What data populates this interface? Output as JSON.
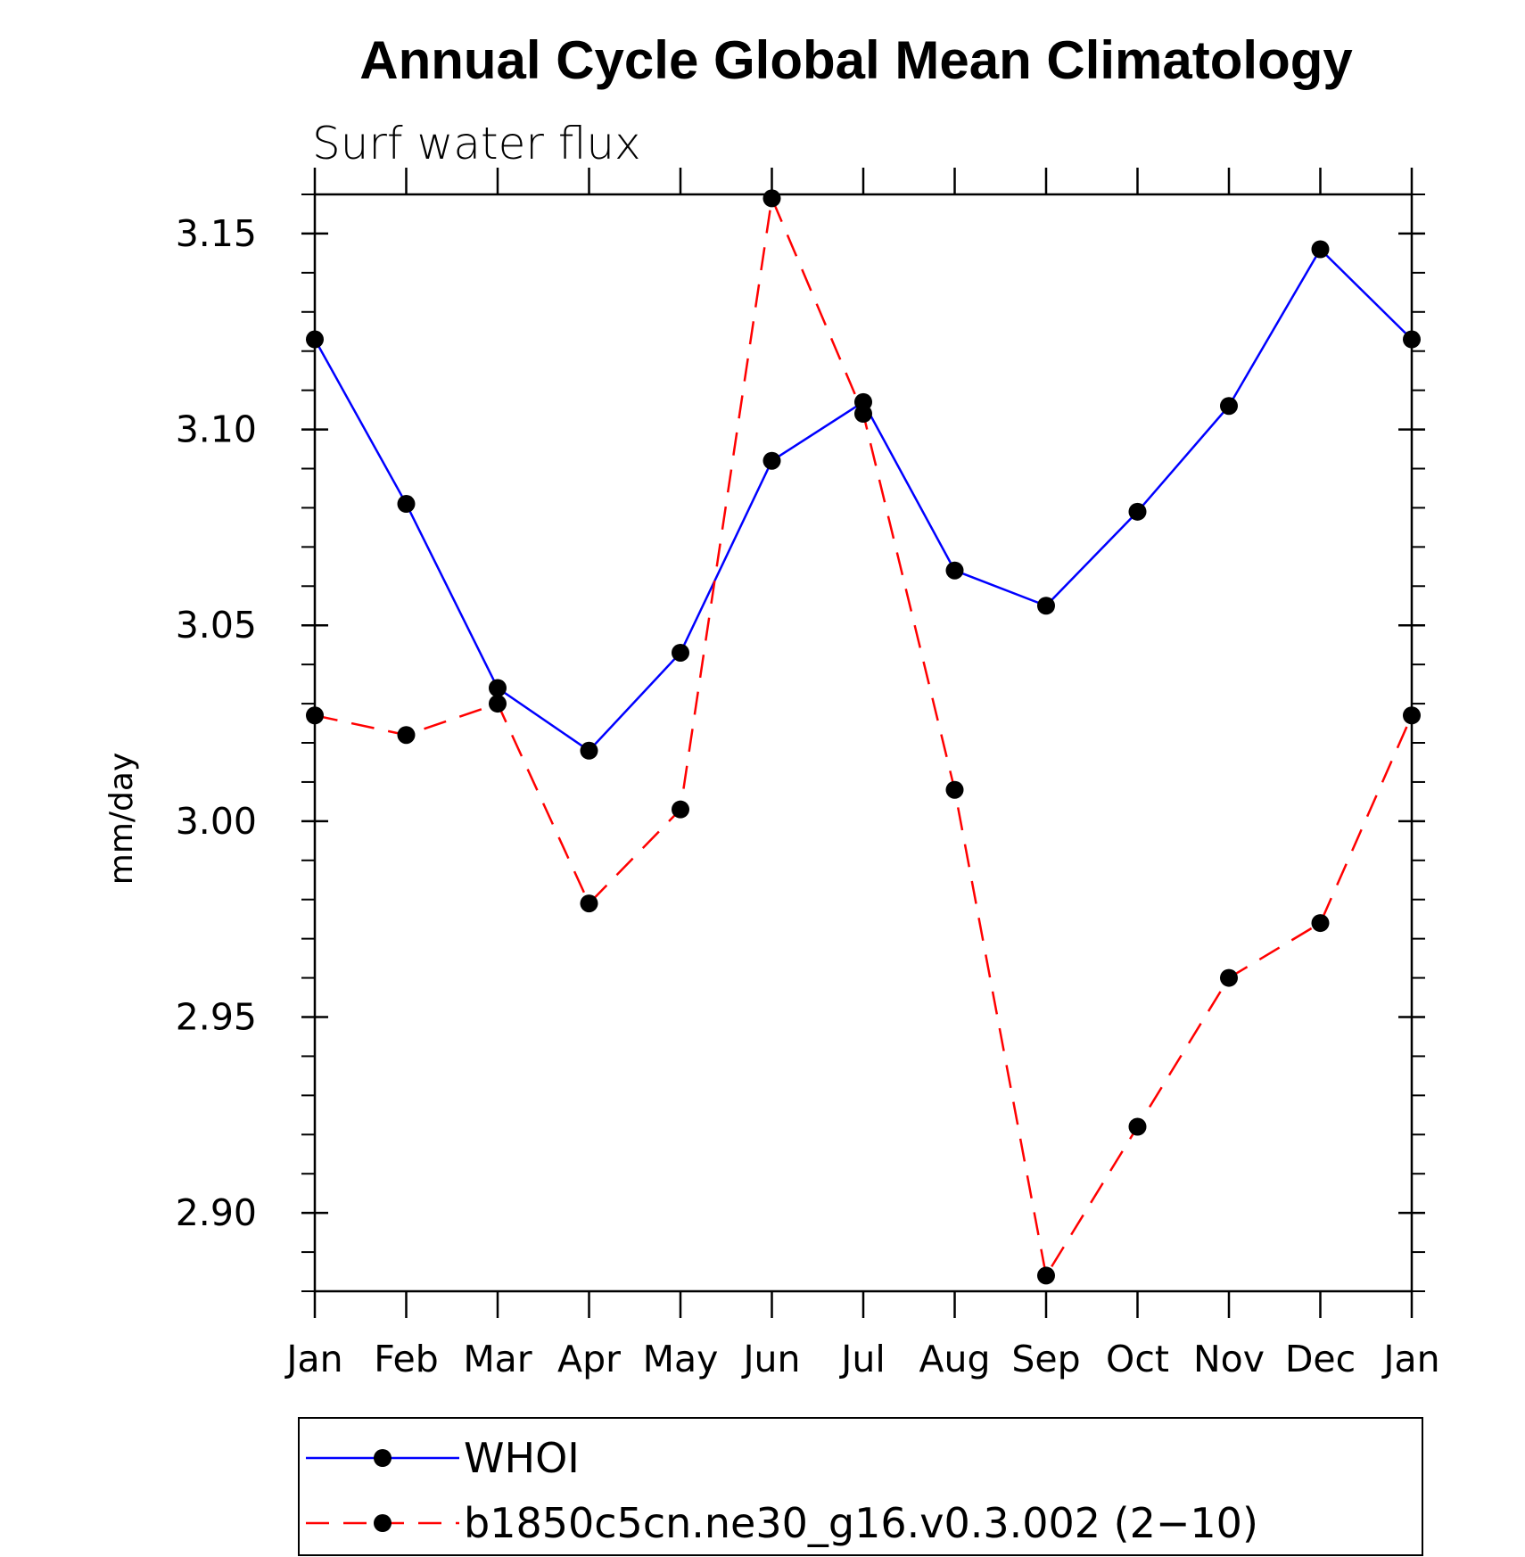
{
  "chart_data": {
    "type": "line",
    "title": "Annual Cycle Global Mean Climatology",
    "subtitle": "Surf water flux",
    "xlabel": "",
    "ylabel": "mm/day",
    "categories": [
      "Jan",
      "Feb",
      "Mar",
      "Apr",
      "May",
      "Jun",
      "Jul",
      "Aug",
      "Sep",
      "Oct",
      "Nov",
      "Dec",
      "Jan"
    ],
    "ylim": [
      2.88,
      3.16
    ],
    "yticks": [
      2.9,
      2.95,
      3.0,
      3.05,
      3.1,
      3.15
    ],
    "ytick_labels": [
      "2.90",
      "2.95",
      "3.00",
      "3.05",
      "3.10",
      "3.15"
    ],
    "grid": false,
    "legend_position": "bottom",
    "series": [
      {
        "name": "WHOI",
        "color": "#0000ff",
        "line_style": "solid",
        "marker_color": "#000000",
        "values": [
          3.123,
          3.081,
          3.034,
          3.018,
          3.043,
          3.092,
          3.107,
          3.064,
          3.055,
          3.079,
          3.106,
          3.146,
          3.123
        ]
      },
      {
        "name": "b1850c5cn.ne30_g16.v0.3.002 (2−10)",
        "color": "#ff0000",
        "line_style": "dashed",
        "marker_color": "#000000",
        "values": [
          3.027,
          3.022,
          3.03,
          2.979,
          3.003,
          3.159,
          3.104,
          3.008,
          2.884,
          2.922,
          2.96,
          2.974,
          3.027
        ]
      }
    ]
  }
}
